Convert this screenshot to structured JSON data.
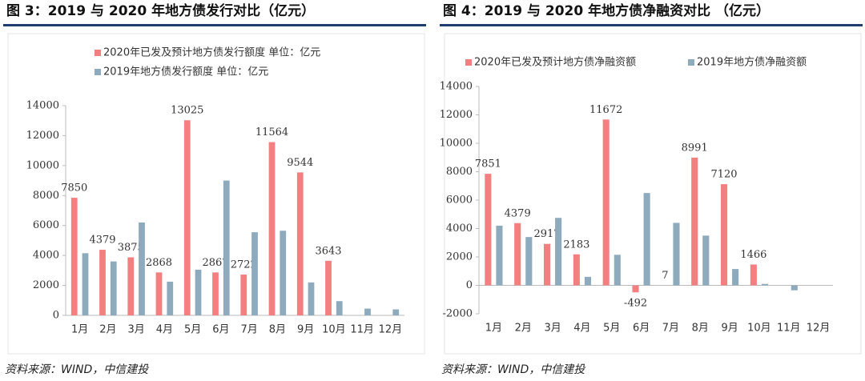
{
  "chart_data": [
    {
      "type": "bar",
      "title": "图 3：2019 与 2020 年地方债发行对比（亿元）",
      "source": "资料来源：WIND，中信建投",
      "categories": [
        "1月",
        "2月",
        "3月",
        "4月",
        "5月",
        "6月",
        "7月",
        "8月",
        "9月",
        "10月",
        "11月",
        "12月"
      ],
      "series": [
        {
          "name": "2020年已发及预计地方债发行额度  单位：亿元",
          "color": "#f47f80",
          "data_labels": true,
          "values": [
            7850,
            4379,
            3875,
            2868,
            13025,
            2867,
            2722,
            11564,
            9544,
            3643,
            null,
            null
          ]
        },
        {
          "name": "2019年地方债发行额度  单位：亿元",
          "color": "#8eaabd",
          "data_labels": false,
          "values": [
            4150,
            3600,
            6200,
            2250,
            3050,
            9000,
            5550,
            5650,
            2200,
            950,
            450,
            400
          ]
        }
      ],
      "ylim": [
        0,
        14000
      ],
      "yticks": [
        0,
        2000,
        4000,
        6000,
        8000,
        10000,
        12000,
        14000
      ],
      "grid": false,
      "legend": "top-left"
    },
    {
      "type": "bar",
      "title": "图 4：2019 与 2020 年地方债净融资对比 （亿元）",
      "source": "资料来源：WIND，中信建投",
      "categories": [
        "1月",
        "2月",
        "3月",
        "4月",
        "5月",
        "6月",
        "7月",
        "8月",
        "9月",
        "10月",
        "11月",
        "12月"
      ],
      "series": [
        {
          "name": "2020年已发及预计地方债净融资额",
          "color": "#f47f80",
          "data_labels": true,
          "values": [
            7851,
            4379,
            2917,
            2183,
            11672,
            -492,
            7,
            8991,
            7120,
            1466,
            null,
            null
          ]
        },
        {
          "name": "2019年地方债净融资额",
          "color": "#8eaabd",
          "data_labels": false,
          "values": [
            4200,
            3400,
            4750,
            600,
            2150,
            6500,
            4400,
            3500,
            1150,
            100,
            -350,
            null
          ]
        }
      ],
      "ylim": [
        -2000,
        14000
      ],
      "yticks": [
        -2000,
        0,
        2000,
        4000,
        6000,
        8000,
        10000,
        12000,
        14000
      ],
      "grid": false,
      "legend": "top"
    }
  ]
}
